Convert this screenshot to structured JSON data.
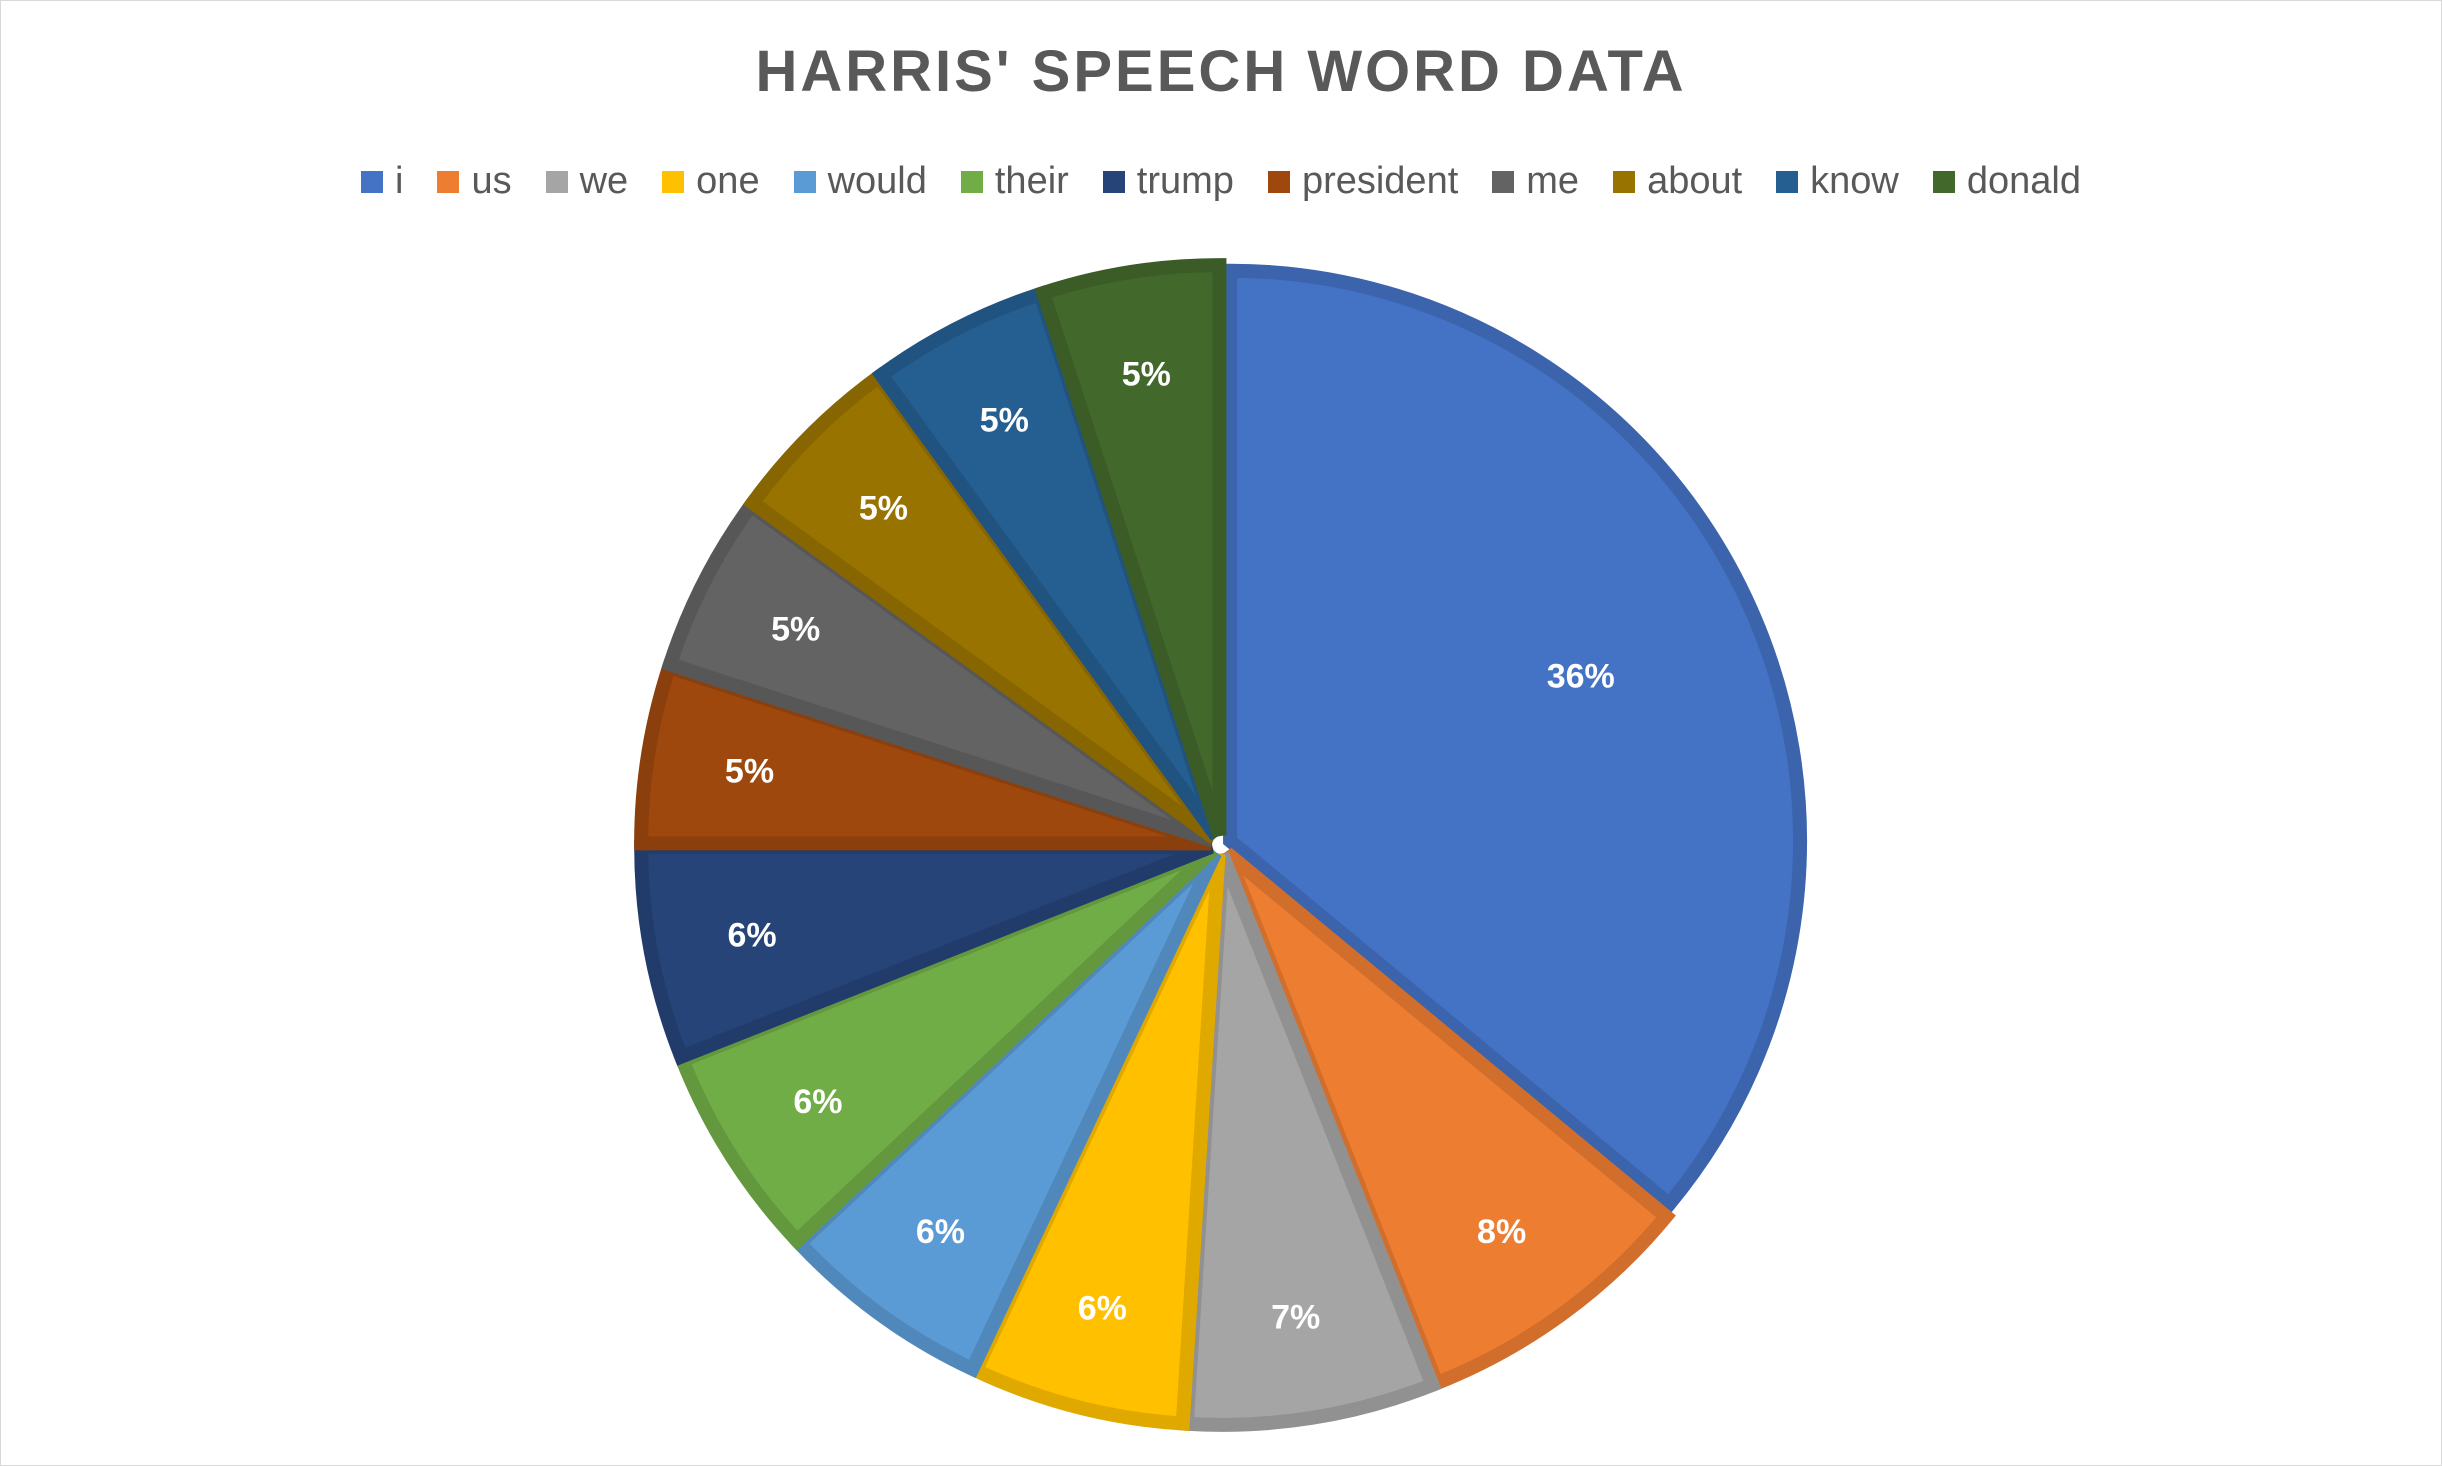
{
  "chart_data": {
    "type": "pie",
    "title": "HARRIS' SPEECH WORD DATA",
    "legend_position": "top",
    "categories": [
      "i",
      "us",
      "we",
      "one",
      "would",
      "their",
      "trump",
      "president",
      "me",
      "about",
      "know",
      "donald"
    ],
    "values": [
      36,
      8,
      7,
      6,
      6,
      6,
      6,
      5,
      5,
      5,
      5,
      5
    ],
    "data_labels": [
      "36%",
      "8%",
      "7%",
      "6%",
      "6%",
      "6%",
      "6%",
      "5%",
      "5%",
      "5%",
      "5%",
      "5%"
    ],
    "colors": [
      "#4472C4",
      "#ED7D31",
      "#A5A5A5",
      "#FFC000",
      "#5B9BD5",
      "#70AD47",
      "#264478",
      "#9E480E",
      "#636363",
      "#997300",
      "#255E91",
      "#43682B"
    ]
  }
}
